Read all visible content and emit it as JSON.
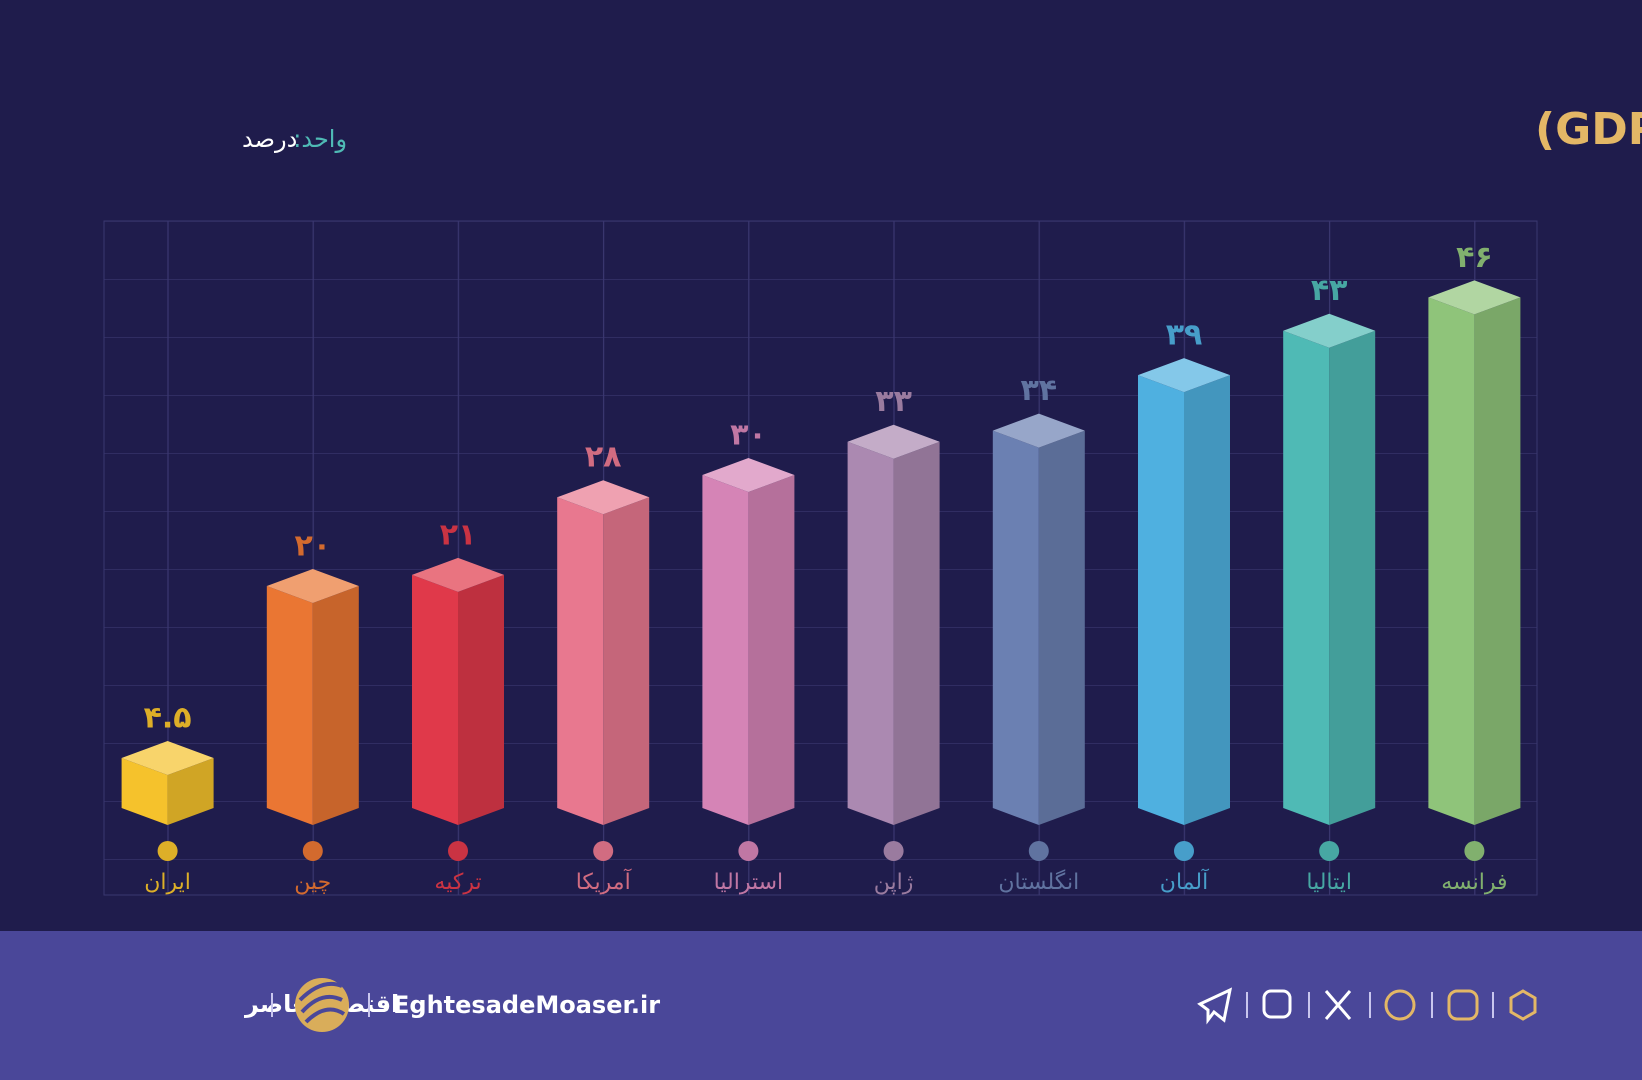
{
  "chart_data": {
    "type": "bar3d",
    "title": "نسبت درآمدهای مالیاتی به تولید ناخالص داخلی (GDP)",
    "unit_label": "واحد:",
    "unit": "درصد",
    "categories": [
      "ایران",
      "چین",
      "ترکیه",
      "آمریکا",
      "استرالیا",
      "ژاپن",
      "انگلستان",
      "آلمان",
      "ایتالیا",
      "فرانسه"
    ],
    "values": [
      4.5,
      20,
      21,
      28,
      30,
      33,
      34,
      39,
      43,
      46
    ],
    "value_labels": [
      "۴.۵",
      "۲۰",
      "۲۱",
      "۲۸",
      "۳۰",
      "۳۳",
      "۳۴",
      "۳۹",
      "۴۳",
      "۴۶"
    ],
    "colors": [
      "#f5c22c",
      "#ea7633",
      "#e0394a",
      "#e8788f",
      "#d584b6",
      "#ab89b1",
      "#6b80b2",
      "#4fb0e0",
      "#4fbab5",
      "#8fc47a"
    ],
    "ylim": [
      0,
      50
    ]
  },
  "footer": {
    "brand": "اقتصادمعاصر",
    "site": "EghtesadeMoaser.ir"
  }
}
